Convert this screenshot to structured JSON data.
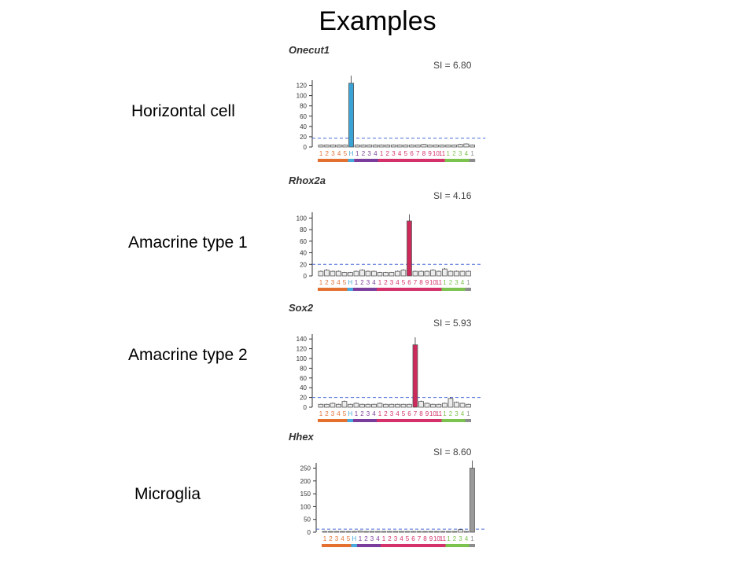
{
  "slide": {
    "title": "Examples"
  },
  "colors": {
    "highlight_horizontal": "#3aa3d6",
    "highlight_amacrine": "#cc2a5a",
    "highlight_microglia": "#9a9a9a",
    "threshold_line": "#4a6bd8",
    "groups": [
      "#e3702f",
      "#48a9dc",
      "#7b3d9b",
      "#d4306a",
      "#7cc24e",
      "#8c8c8c"
    ]
  },
  "cell_groups": [
    {
      "count": 5,
      "color": "#e3702f"
    },
    {
      "count": 1,
      "color": "#48a9dc"
    },
    {
      "count": 4,
      "color": "#7b3d9b"
    },
    {
      "count": 11,
      "color": "#d4306a"
    },
    {
      "count": 4,
      "color": "#7cc24e"
    },
    {
      "count": 1,
      "color": "#8c8c8c"
    }
  ],
  "chart_data": [
    {
      "type": "bar",
      "row_label": "Horizontal cell",
      "title": "Onecut1",
      "annotation": "SI = 6.80",
      "categories": [
        "1",
        "2",
        "3",
        "4",
        "5",
        "H",
        "1",
        "2",
        "3",
        "4",
        "1",
        "2",
        "3",
        "4",
        "5",
        "6",
        "7",
        "8",
        "9",
        "10",
        "11",
        "1",
        "2",
        "3",
        "4",
        "1"
      ],
      "values": [
        4,
        4,
        4,
        4,
        4,
        124,
        4,
        4,
        4,
        4,
        4,
        4,
        4,
        4,
        4,
        4,
        4,
        5,
        4,
        4,
        4,
        4,
        4,
        5,
        6,
        4
      ],
      "highlight_index": 5,
      "highlight_color": "#3aa3d6",
      "threshold": 17,
      "ylim": [
        0,
        130
      ],
      "yticks": [
        0,
        20,
        40,
        60,
        80,
        100,
        120
      ]
    },
    {
      "type": "bar",
      "row_label": "Amacrine type 1",
      "title": "Rhox2a",
      "annotation": "SI = 4.16",
      "categories": [
        "1",
        "2",
        "3",
        "4",
        "5",
        "H",
        "1",
        "2",
        "3",
        "4",
        "1",
        "2",
        "3",
        "4",
        "5",
        "6",
        "7",
        "8",
        "9",
        "10",
        "11",
        "1",
        "2",
        "3",
        "4",
        "1"
      ],
      "values": [
        8,
        10,
        8,
        8,
        6,
        6,
        8,
        10,
        8,
        8,
        6,
        6,
        6,
        8,
        10,
        95,
        8,
        8,
        8,
        10,
        8,
        12,
        8,
        8,
        8,
        8
      ],
      "highlight_index": 15,
      "highlight_color": "#cc2a5a",
      "threshold": 20,
      "ylim": [
        0,
        110
      ],
      "yticks": [
        0,
        20,
        40,
        60,
        80,
        100
      ]
    },
    {
      "type": "bar",
      "row_label": "Amacrine type 2",
      "title": "Sox2",
      "annotation": "SI = 5.93",
      "categories": [
        "1",
        "2",
        "3",
        "4",
        "5",
        "H",
        "1",
        "2",
        "3",
        "4",
        "1",
        "2",
        "3",
        "4",
        "5",
        "6",
        "7",
        "8",
        "9",
        "10",
        "11",
        "1",
        "2",
        "3",
        "4",
        "1"
      ],
      "values": [
        6,
        6,
        8,
        6,
        12,
        6,
        8,
        6,
        6,
        6,
        8,
        6,
        6,
        6,
        6,
        6,
        128,
        12,
        8,
        6,
        6,
        8,
        18,
        10,
        8,
        6
      ],
      "highlight_index": 16,
      "highlight_color": "#cc2a5a",
      "threshold": 20,
      "ylim": [
        0,
        150
      ],
      "yticks": [
        0,
        20,
        40,
        60,
        80,
        100,
        120,
        140
      ]
    },
    {
      "type": "bar",
      "row_label": "Microglia",
      "title": "Hhex",
      "annotation": "SI = 8.60",
      "categories": [
        "1",
        "2",
        "3",
        "4",
        "5",
        "H",
        "1",
        "2",
        "3",
        "4",
        "1",
        "2",
        "3",
        "4",
        "5",
        "6",
        "7",
        "8",
        "9",
        "10",
        "11",
        "1",
        "2",
        "3",
        "4",
        "1"
      ],
      "values": [
        3,
        3,
        3,
        3,
        3,
        3,
        5,
        3,
        3,
        3,
        3,
        3,
        3,
        3,
        3,
        3,
        3,
        3,
        3,
        3,
        3,
        3,
        3,
        10,
        3,
        250
      ],
      "highlight_index": 25,
      "highlight_color": "#9a9a9a",
      "threshold": 12,
      "ylim": [
        0,
        270
      ],
      "yticks": [
        0,
        50,
        100,
        150,
        200,
        250
      ]
    }
  ]
}
